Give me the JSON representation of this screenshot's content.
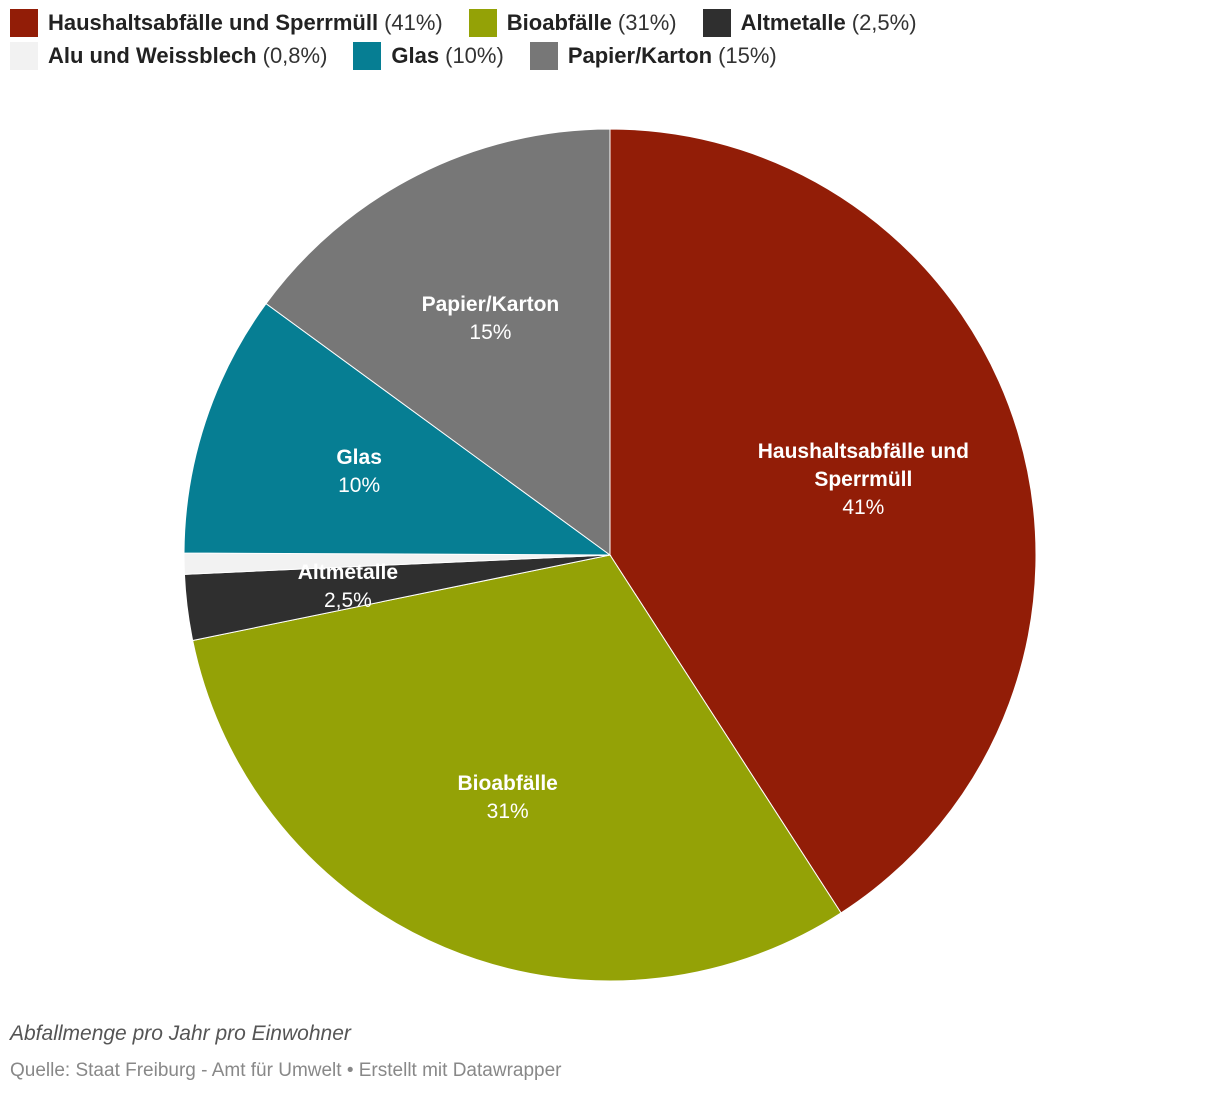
{
  "chart_data": {
    "type": "pie",
    "slices": [
      {
        "label": "Haushaltsabfälle und Sperrmüll",
        "label_lines": [
          "Haushaltsabfälle und",
          "Sperrmüll"
        ],
        "value": 41,
        "value_label": "41%",
        "legend_pct": "(41%)",
        "color": "#921d07",
        "show_label": true
      },
      {
        "label": "Bioabfälle",
        "label_lines": [
          "Bioabfälle"
        ],
        "value": 31,
        "value_label": "31%",
        "legend_pct": "(31%)",
        "color": "#94a206",
        "show_label": true
      },
      {
        "label": "Altmetalle",
        "label_lines": [
          "Altmetalle"
        ],
        "value": 2.5,
        "value_label": "2,5%",
        "legend_pct": "(2,5%)",
        "color": "#2f2f2f",
        "show_label": true
      },
      {
        "label": "Alu und Weissblech",
        "label_lines": [
          "Alu und Weissblech"
        ],
        "value": 0.8,
        "value_label": "0,8%",
        "legend_pct": "(0,8%)",
        "color": "#f2f2f2",
        "show_label": false
      },
      {
        "label": "Glas",
        "label_lines": [
          "Glas"
        ],
        "value": 10,
        "value_label": "10%",
        "legend_pct": "(10%)",
        "color": "#067e93",
        "show_label": true
      },
      {
        "label": "Papier/Karton",
        "label_lines": [
          "Papier/Karton"
        ],
        "value": 15,
        "value_label": "15%",
        "legend_pct": "(15%)",
        "color": "#777777",
        "show_label": true
      }
    ],
    "legend_rows": [
      [
        0,
        1,
        2
      ],
      [
        3,
        4,
        5
      ]
    ],
    "start": "top, clockwise"
  },
  "notes": "Abfallmenge pro Jahr pro Einwohner",
  "source": "Quelle: Staat Freiburg - Amt für Umwelt • Erstellt mit Datawrapper"
}
